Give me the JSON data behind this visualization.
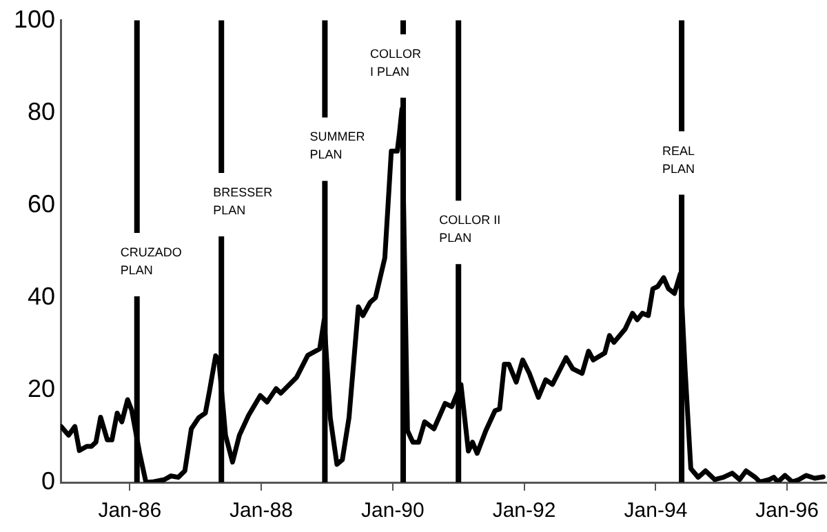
{
  "chart_data": {
    "type": "line",
    "xlim": [
      "1984-12-13",
      "1996-08-07"
    ],
    "xticks": [
      {
        "value": "1986-01-01",
        "label": "Jan-86"
      },
      {
        "value": "1988-01-01",
        "label": "Jan-88"
      },
      {
        "value": "1990-01-01",
        "label": "Jan-90"
      },
      {
        "value": "1992-01-01",
        "label": "Jan-92"
      },
      {
        "value": "1994-01-01",
        "label": "Jan-94"
      },
      {
        "value": "1996-01-01",
        "label": "Jan-96"
      }
    ],
    "ylim": [
      0,
      100
    ],
    "yticks": [
      0,
      20,
      40,
      60,
      80,
      100
    ],
    "grid": false,
    "legend": false,
    "marker": "none",
    "line_style": "solid",
    "series": [
      {
        "color": "#000000",
        "x": [
          "1984-12-16",
          "1985-01-26",
          "1985-03-02",
          "1985-03-27",
          "1985-05-07",
          "1985-06-02",
          "1985-06-27",
          "1985-07-23",
          "1985-08-29",
          "1985-09-24",
          "1985-10-23",
          "1985-11-18",
          "1985-12-20",
          "1986-01-12",
          "1986-02-25",
          "1986-04-01",
          "1986-05-07",
          "1986-07-12",
          "1986-08-18",
          "1986-09-27",
          "1986-11-03",
          "1986-12-09",
          "1987-01-19",
          "1987-02-25",
          "1987-03-20",
          "1987-04-23",
          "1987-05-11",
          "1987-06-17",
          "1987-07-26",
          "1987-09-02",
          "1987-10-23",
          "1987-12-27",
          "1988-02-03",
          "1988-03-24",
          "1988-04-19",
          "1988-07-15",
          "1988-09-16",
          "1988-11-21",
          "1988-12-16",
          "1989-01-19",
          "1989-02-25",
          "1989-03-27",
          "1989-05-03",
          "1989-06-24",
          "1989-07-19",
          "1989-08-29",
          "1989-09-27",
          "1989-11-18",
          "1989-12-24",
          "1990-01-26",
          "1990-02-07",
          "1990-02-21",
          "1990-03-24",
          "1990-04-23",
          "1990-05-25",
          "1990-06-27",
          "1990-08-18",
          "1990-10-19",
          "1990-11-25",
          "1991-01-15",
          "1991-02-25",
          "1991-03-20",
          "1991-04-15",
          "1991-06-02",
          "1991-07-23",
          "1991-08-18",
          "1991-09-13",
          "1991-10-08",
          "1991-11-18",
          "1991-12-24",
          "1992-01-30",
          "1992-03-20",
          "1992-04-30",
          "1992-06-06",
          "1992-08-21",
          "1992-09-27",
          "1992-11-18",
          "1992-12-24",
          "1993-01-19",
          "1993-03-24",
          "1993-04-19",
          "1993-05-14",
          "1993-07-15",
          "1993-08-25",
          "1993-09-20",
          "1993-10-19",
          "1993-11-21",
          "1993-12-16",
          "1994-01-12",
          "1994-02-14",
          "1994-03-13",
          "1994-04-15",
          "1994-05-18",
          "1994-06-13",
          "1994-07-15",
          "1994-08-25",
          "1994-10-05",
          "1994-11-25",
          "1995-01-12",
          "1995-03-02",
          "1995-04-12",
          "1995-05-18",
          "1995-07-08",
          "1995-08-03",
          "1995-09-24",
          "1995-10-19",
          "1995-11-11",
          "1995-12-20",
          "1996-01-30",
          "1996-03-06",
          "1996-04-15",
          "1996-06-02",
          "1996-07-19"
        ],
        "values": [
          12.1,
          10.2,
          12.1,
          6.9,
          7.8,
          7.8,
          8.7,
          14.1,
          9.2,
          9.2,
          15,
          13.1,
          17.9,
          15.6,
          6.3,
          0,
          0.1,
          0.6,
          1.4,
          1.1,
          2.5,
          11.6,
          14,
          15,
          19.8,
          27.4,
          26.5,
          10.2,
          4.4,
          10.2,
          14.5,
          18.8,
          17.4,
          20.3,
          19.3,
          22.7,
          27.5,
          28.9,
          35.2,
          14,
          3.9,
          4.9,
          14,
          38,
          36.1,
          39,
          40,
          48.6,
          71.7,
          71.7,
          75.5,
          80.8,
          11.2,
          8.7,
          8.7,
          13.1,
          11.6,
          17.1,
          16.4,
          21.2,
          6.8,
          8.7,
          6.3,
          11.2,
          15.5,
          15.9,
          25.6,
          25.6,
          21.7,
          26.5,
          23.6,
          18.4,
          22.2,
          21.2,
          27,
          24.6,
          23.6,
          28.4,
          26.5,
          28,
          31.8,
          30.3,
          33.2,
          36.6,
          35.2,
          36.6,
          36.1,
          41.9,
          42.4,
          44.3,
          41.9,
          40.9,
          45.2,
          24.6,
          3,
          1.1,
          2.5,
          0.6,
          1.1,
          2,
          0.6,
          2.5,
          1.1,
          0.1,
          0.6,
          1.1,
          0.1,
          1.5,
          0.1,
          0.6,
          1.5,
          0.9,
          1.2
        ]
      }
    ],
    "ref_lines": [
      {
        "axis": "x",
        "value": "1986-02-10",
        "label": "CRUZADO\nPLAN",
        "color": "#000000"
      },
      {
        "axis": "x",
        "value": "1987-05-25",
        "label": "BRESSER\nPLAN",
        "color": "#000000"
      },
      {
        "axis": "x",
        "value": "1988-12-20",
        "label": "SUMMER\nPLAN",
        "color": "#000000"
      },
      {
        "axis": "x",
        "value": "1990-02-28",
        "label": "COLLOR\nI PLAN",
        "color": "#000000"
      },
      {
        "axis": "x",
        "value": "1991-01-01",
        "label": "COLLOR II\nPLAN",
        "color": "#000000"
      },
      {
        "axis": "x",
        "value": "1994-05-25",
        "label": "REAL\nPLAN",
        "color": "#000000"
      }
    ]
  }
}
